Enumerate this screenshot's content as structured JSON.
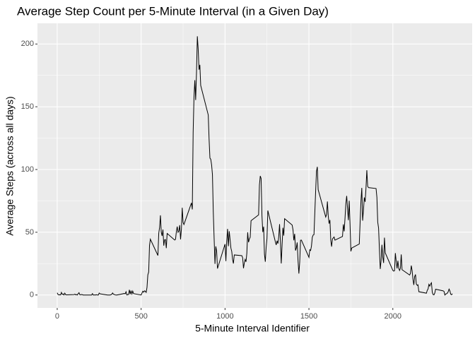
{
  "chart_data": {
    "type": "line",
    "title": "Average Step Count per 5-Minute Interval (in a Given Day)",
    "x_label": "5-Minute Interval Identifier",
    "y_label": "Average Steps (across all days)",
    "xlim": [
      -117.75,
      2472.75
    ],
    "ylim": [
      -10.3,
      216.5
    ],
    "xticks": [
      0,
      500,
      1000,
      1500,
      2000
    ],
    "yticks": [
      0,
      50,
      100,
      150,
      200
    ],
    "grid": true,
    "panel_color": "#ebebeb",
    "x": [
      0,
      5,
      10,
      15,
      20,
      25,
      30,
      35,
      40,
      45,
      50,
      55,
      100,
      105,
      110,
      115,
      120,
      125,
      130,
      135,
      140,
      145,
      150,
      155,
      200,
      205,
      210,
      215,
      220,
      225,
      230,
      235,
      240,
      245,
      250,
      255,
      300,
      305,
      310,
      315,
      320,
      325,
      330,
      335,
      340,
      345,
      350,
      355,
      400,
      405,
      410,
      415,
      420,
      425,
      430,
      435,
      440,
      445,
      450,
      455,
      500,
      505,
      510,
      515,
      520,
      525,
      530,
      535,
      540,
      545,
      550,
      555,
      600,
      605,
      610,
      615,
      620,
      625,
      630,
      635,
      640,
      645,
      650,
      655,
      700,
      705,
      710,
      715,
      720,
      725,
      730,
      735,
      740,
      745,
      750,
      755,
      800,
      805,
      810,
      815,
      820,
      825,
      830,
      835,
      840,
      845,
      850,
      855,
      900,
      905,
      910,
      915,
      920,
      925,
      930,
      935,
      940,
      945,
      950,
      955,
      1000,
      1005,
      1010,
      1015,
      1020,
      1025,
      1030,
      1035,
      1040,
      1045,
      1050,
      1055,
      1100,
      1105,
      1110,
      1115,
      1120,
      1125,
      1130,
      1135,
      1140,
      1145,
      1150,
      1155,
      1200,
      1205,
      1210,
      1215,
      1220,
      1225,
      1230,
      1235,
      1240,
      1245,
      1250,
      1255,
      1300,
      1305,
      1310,
      1315,
      1320,
      1325,
      1330,
      1335,
      1340,
      1345,
      1350,
      1355,
      1400,
      1405,
      1410,
      1415,
      1420,
      1425,
      1430,
      1435,
      1440,
      1445,
      1450,
      1455,
      1500,
      1505,
      1510,
      1515,
      1520,
      1525,
      1530,
      1535,
      1540,
      1545,
      1550,
      1555,
      1600,
      1605,
      1610,
      1615,
      1620,
      1625,
      1630,
      1635,
      1640,
      1645,
      1650,
      1655,
      1700,
      1705,
      1710,
      1715,
      1720,
      1725,
      1730,
      1735,
      1740,
      1745,
      1750,
      1755,
      1800,
      1805,
      1810,
      1815,
      1820,
      1825,
      1830,
      1835,
      1840,
      1845,
      1850,
      1855,
      1900,
      1905,
      1910,
      1915,
      1920,
      1925,
      1930,
      1935,
      1940,
      1945,
      1950,
      1955,
      2000,
      2005,
      2010,
      2015,
      2020,
      2025,
      2030,
      2035,
      2040,
      2045,
      2050,
      2055,
      2100,
      2105,
      2110,
      2115,
      2120,
      2125,
      2130,
      2135,
      2140,
      2145,
      2150,
      2155,
      2200,
      2205,
      2210,
      2215,
      2220,
      2225,
      2230,
      2235,
      2240,
      2245,
      2250,
      2255,
      2300,
      2305,
      2310,
      2315,
      2320,
      2325,
      2330,
      2335,
      2340,
      2345,
      2350,
      2355
    ],
    "series": [
      {
        "color": "#000000",
        "values": [
          1.72,
          0.34,
          0.13,
          0.15,
          0.08,
          2.09,
          0.53,
          0.87,
          0,
          1.47,
          0.3,
          0.13,
          0.32,
          0.68,
          0.15,
          0.34,
          0,
          1.11,
          1.83,
          0.17,
          0.17,
          0.38,
          0.26,
          0,
          0,
          0,
          1.13,
          0,
          0,
          0.13,
          0,
          0.23,
          0,
          0,
          1.55,
          0.94,
          0,
          0,
          0,
          0,
          0.21,
          0.62,
          1.62,
          0.58,
          0.49,
          0.08,
          0,
          0,
          1.19,
          0.94,
          2.57,
          0,
          0.34,
          0.36,
          4.11,
          0.66,
          3.49,
          0.83,
          3.11,
          1.11,
          0,
          1.57,
          3,
          2.25,
          3.32,
          2.96,
          2.09,
          6.06,
          16.02,
          18.34,
          39.45,
          44.49,
          31.49,
          49.26,
          53.77,
          63.45,
          49.96,
          47.08,
          52.15,
          39.34,
          44.02,
          44.17,
          37.36,
          49.04,
          43.81,
          44.38,
          50.51,
          54.51,
          49.92,
          50.98,
          55.68,
          44.32,
          52.26,
          69.55,
          57.85,
          56.15,
          73.38,
          68.21,
          129.43,
          157.53,
          171.15,
          155.4,
          177.3,
          206.17,
          195.92,
          179.57,
          183.4,
          167.02,
          143.45,
          124.04,
          109.11,
          108.11,
          103.72,
          95.96,
          66.21,
          45.23,
          24.79,
          38.75,
          34.98,
          21.06,
          40.57,
          26.98,
          42.42,
          52.66,
          38.92,
          50.79,
          44.28,
          37.42,
          34.7,
          28.34,
          25.09,
          31.94,
          31.36,
          29.68,
          21.32,
          25.55,
          28.38,
          26.47,
          33.43,
          49.98,
          42.04,
          44.6,
          46.04,
          59.19,
          63.87,
          87.7,
          94.85,
          92.77,
          63.4,
          50.17,
          54.47,
          32.42,
          26.53,
          37.74,
          45.06,
          67.28,
          42.34,
          39.89,
          43.26,
          40.98,
          46.25,
          56.43,
          42.75,
          25.13,
          39.96,
          53.55,
          47.32,
          60.81,
          55.75,
          51.96,
          43.58,
          48.7,
          35.47,
          37.55,
          41.85,
          27.51,
          17.11,
          26.08,
          43.62,
          43.77,
          30.02,
          36.08,
          35.49,
          38.85,
          45.96,
          47.75,
          48.13,
          65.32,
          82.91,
          98.66,
          102.11,
          83.96,
          62.13,
          64.13,
          74.55,
          63.17,
          56.91,
          59.77,
          43.87,
          38.57,
          44.66,
          45.45,
          46.21,
          43.68,
          46.62,
          56.3,
          50.72,
          61.23,
          72.72,
          78.94,
          68.94,
          59.66,
          75.09,
          56.51,
          34.77,
          37.45,
          40.68,
          58.02,
          74.7,
          85.32,
          59.26,
          67.77,
          77.7,
          74.25,
          85.34,
          99.45,
          86.58,
          85.6,
          84.87,
          77.83,
          58.04,
          53.36,
          36.32,
          20.72,
          27.4,
          40.02,
          30.21,
          25.55,
          45.66,
          33.53,
          19.62,
          19.02,
          19.34,
          33.34,
          26.81,
          21.17,
          27.3,
          21.34,
          19.55,
          21.32,
          32.3,
          20.15,
          15.94,
          17.23,
          23.45,
          19.25,
          12.45,
          8.02,
          14.66,
          16.3,
          8.68,
          7.79,
          8.13,
          2.62,
          1.45,
          3.68,
          4.81,
          8.51,
          7.08,
          8.7,
          9.75,
          2.21,
          0.32,
          0.11,
          1.6,
          4.6,
          3.3,
          2.85,
          0,
          0.83,
          0.96,
          1.58,
          2.6,
          4.7,
          3.3,
          0.64,
          0.23,
          1.08
        ]
      }
    ]
  }
}
